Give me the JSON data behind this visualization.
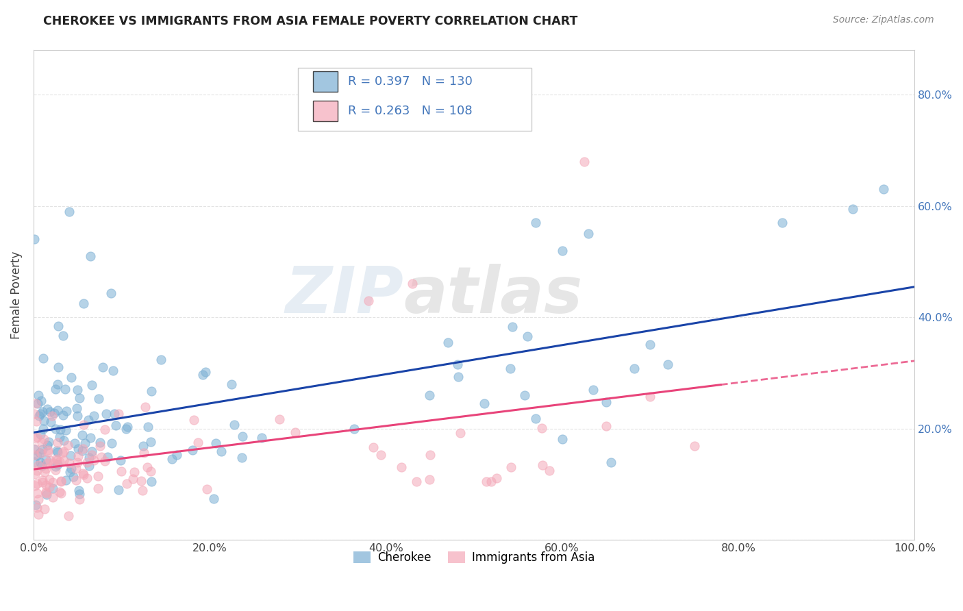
{
  "title": "CHEROKEE VS IMMIGRANTS FROM ASIA FEMALE POVERTY CORRELATION CHART",
  "source": "Source: ZipAtlas.com",
  "ylabel": "Female Poverty",
  "xlabel": "",
  "legend_cherokee_label": "Cherokee",
  "legend_asia_label": "Immigrants from Asia",
  "R_cherokee": 0.397,
  "N_cherokee": 130,
  "R_asia": 0.263,
  "N_asia": 108,
  "cherokee_color": "#7BAFD4",
  "asia_color": "#F4A8B8",
  "trend_cherokee_color": "#1A44A8",
  "trend_asia_color": "#E8447A",
  "xlim": [
    0.0,
    1.0
  ],
  "ylim": [
    0.0,
    0.88
  ],
  "xticks": [
    0.0,
    0.2,
    0.4,
    0.6,
    0.8,
    1.0
  ],
  "yticks": [
    0.0,
    0.2,
    0.4,
    0.6,
    0.8
  ],
  "xtick_labels": [
    "0.0%",
    "20.0%",
    "40.0%",
    "60.0%",
    "80.0%",
    "100.0%"
  ],
  "ytick_labels_right": [
    "",
    "20.0%",
    "40.0%",
    "60.0%",
    "80.0%"
  ],
  "watermark_zip": "ZIP",
  "watermark_atlas": "atlas",
  "bg_color": "#FFFFFF",
  "grid_color": "#DDDDDD",
  "title_color": "#222222",
  "source_color": "#888888",
  "tick_color": "#4477BB"
}
